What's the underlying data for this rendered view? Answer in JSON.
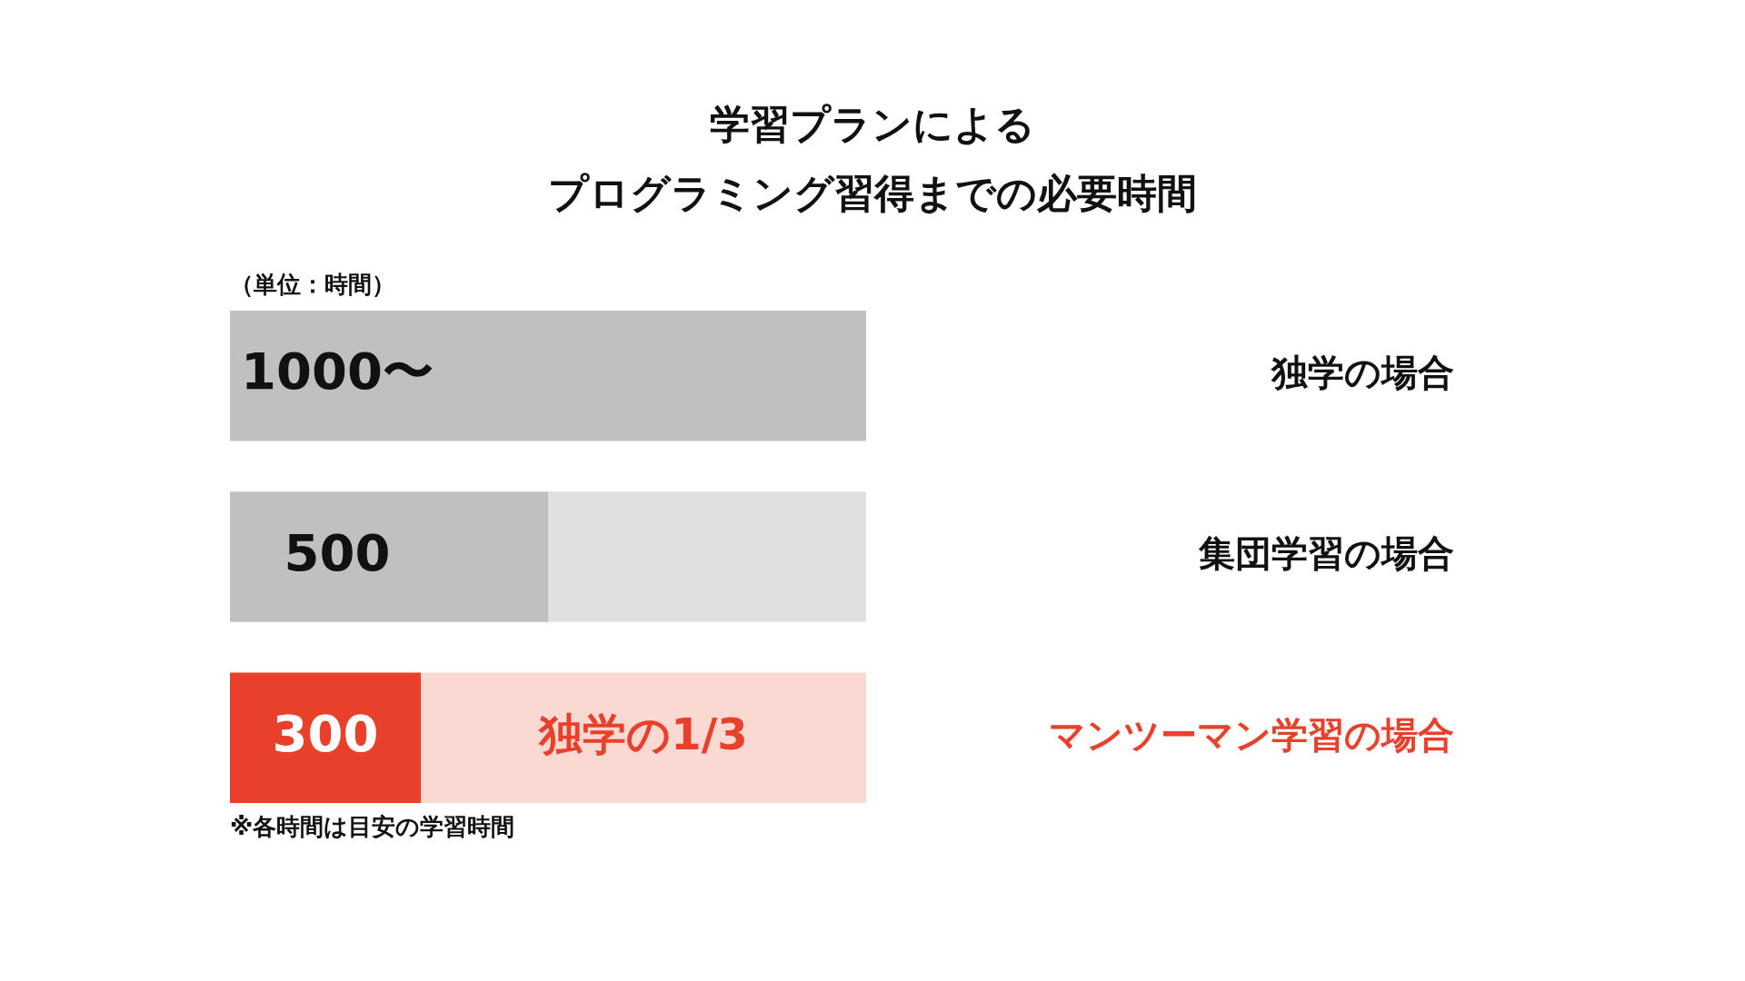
{
  "chart_data": {
    "type": "bar",
    "orientation": "horizontal",
    "stacked": true,
    "title": "学習プランによる",
    "subtitle": "プログラミング習得までの必要時間",
    "categories": [
      "独学の場合",
      "集団学習の場合",
      "マンツーマン学習の場合"
    ],
    "series": [
      {
        "values": [
          1000,
          500,
          300
        ],
        "colors": [
          "#c0c0c0",
          "#c0c0c0",
          "#e8402a"
        ],
        "value_labels": [
          "1000〜",
          "500",
          "300"
        ]
      },
      {
        "values": [
          null,
          500,
          700
        ],
        "colors": [
          "#e0e0e0",
          "#e0e0e0",
          "#fad9d3"
        ]
      }
    ],
    "annotations": [
      "（単位：時間）",
      "独学の1/3",
      "※各時間は目安の学習時間"
    ]
  }
}
